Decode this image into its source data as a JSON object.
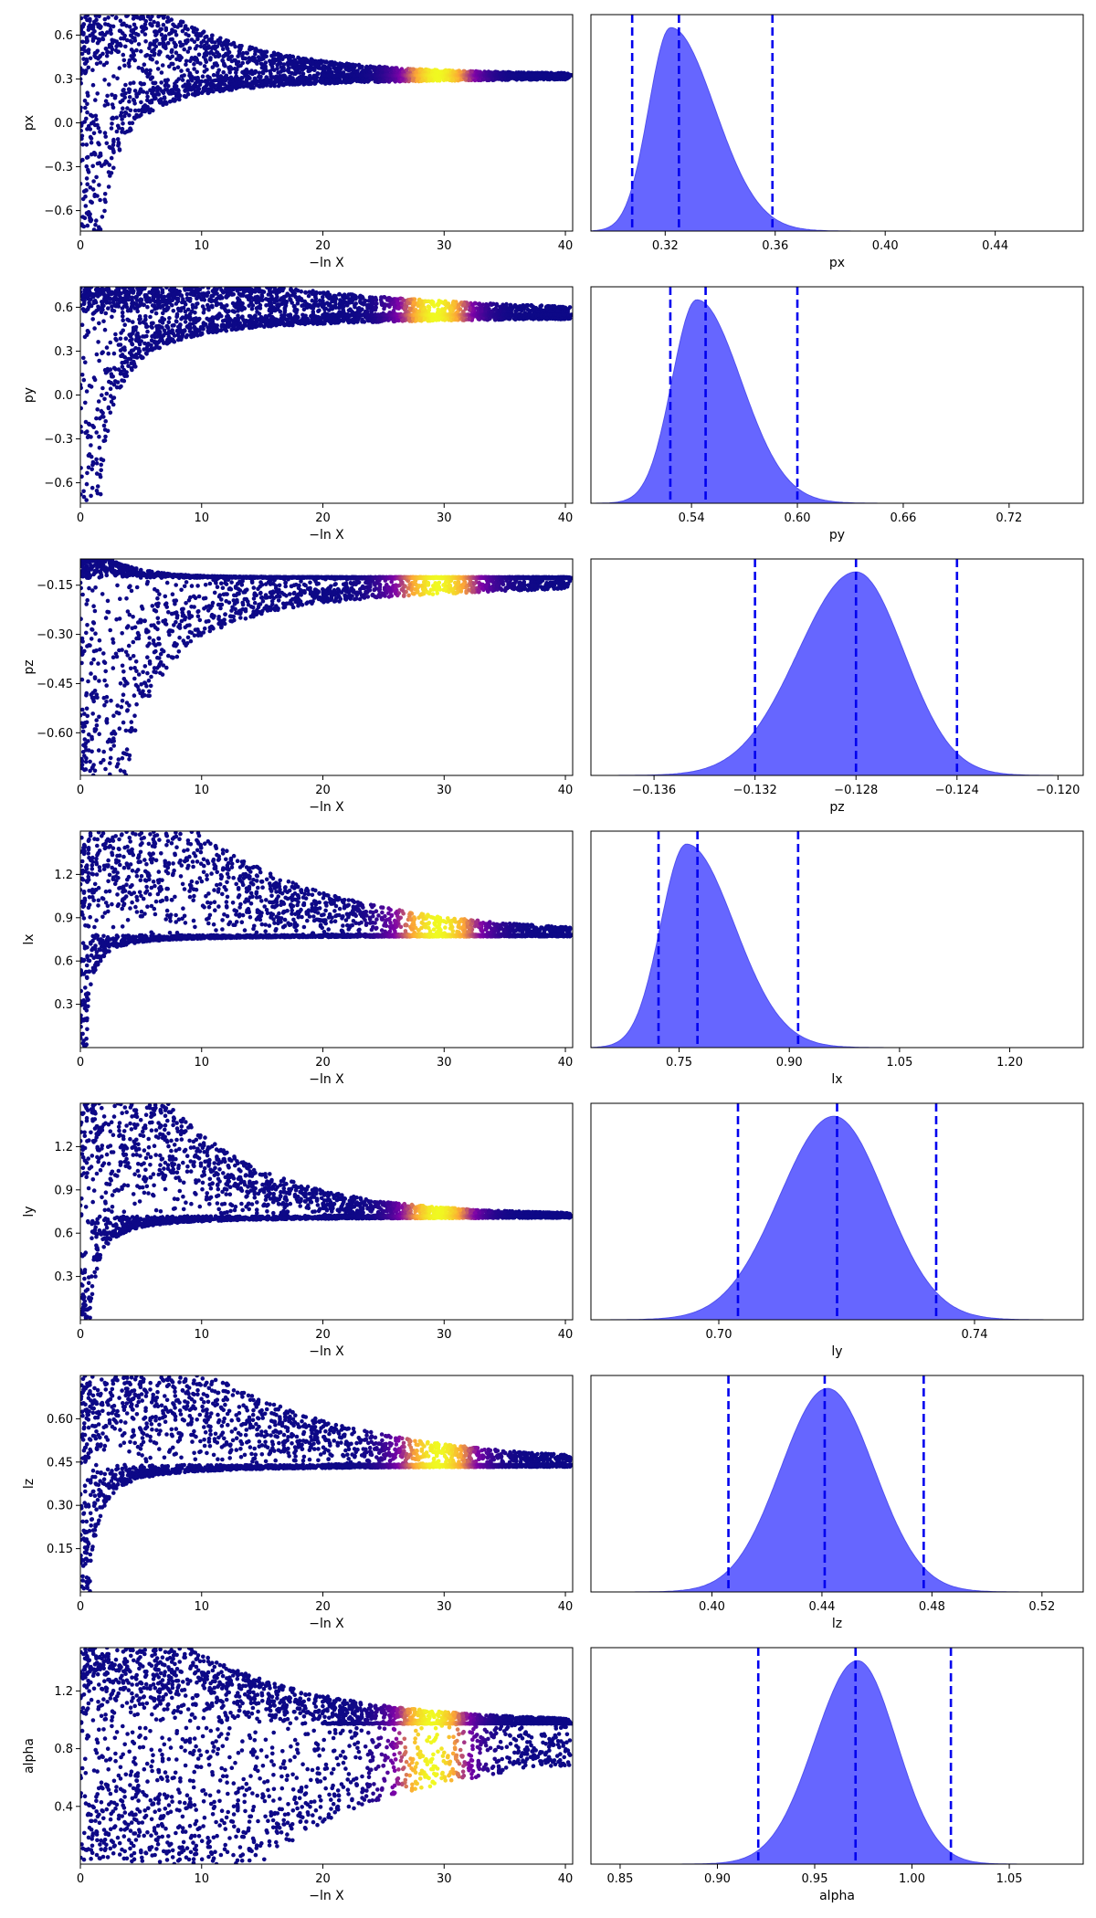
{
  "colors": {
    "trace_dense": "#0d0887",
    "trace_mid": "#7e03a8",
    "trace_peak": "#f0f921",
    "trace_orange": "#fca636",
    "posterior_fill": "#6666ff",
    "quantile_line": "#0000ee",
    "axes": "#000000"
  },
  "chart_data": [
    {
      "type": "scatter",
      "parameter": "px",
      "xlabel": "−ln X",
      "ylabel": "px",
      "xlim": [
        0,
        40.6
      ],
      "ylim": [
        -0.74,
        0.74
      ],
      "xticks": [
        0,
        10,
        20,
        30,
        40
      ],
      "xtick_labels": [
        "0",
        "10",
        "20",
        "30",
        "40"
      ],
      "yticks": [
        -0.6,
        -0.3,
        0.0,
        0.3,
        0.6
      ],
      "ytick_labels": [
        "−0.6",
        "−0.3",
        "0.0",
        "0.3",
        "0.6"
      ],
      "converged_value": 0.325,
      "envelope_top": 0.74,
      "envelope_bottom": -0.74,
      "bottom_reaches_floor_until": 1.8,
      "upper_clip_until": 12,
      "lower_asymptote_x": 1.6,
      "peak_x": 29.5,
      "peak_width": 3.0
    },
    {
      "type": "area",
      "parameter": "px",
      "xlabel": "px",
      "xlim": [
        0.293,
        0.472
      ],
      "xticks": [
        0.32,
        0.36,
        0.4,
        0.44
      ],
      "xtick_labels": [
        "0.32",
        "0.36",
        "0.40",
        "0.44"
      ],
      "mode": 0.322,
      "sigma_left": 0.008,
      "sigma_right": 0.016,
      "quantiles": [
        0.308,
        0.325,
        0.359
      ]
    },
    {
      "type": "scatter",
      "parameter": "py",
      "xlabel": "−ln X",
      "ylabel": "py",
      "xlim": [
        0,
        40.6
      ],
      "ylim": [
        -0.74,
        0.74
      ],
      "xticks": [
        0,
        10,
        20,
        30,
        40
      ],
      "xtick_labels": [
        "0",
        "10",
        "20",
        "30",
        "40"
      ],
      "yticks": [
        -0.6,
        -0.3,
        0.0,
        0.3,
        0.6
      ],
      "ytick_labels": [
        "−0.6",
        "−0.3",
        "0.0",
        "0.3",
        "0.6"
      ],
      "converged_value": 0.548,
      "envelope_top": 0.74,
      "envelope_bottom": -0.74,
      "bottom_reaches_floor_until": 1.6,
      "upper_clip_until": 26,
      "lower_asymptote_x": 1.5,
      "peak_x": 29.3,
      "peak_width": 3.0
    },
    {
      "type": "area",
      "parameter": "py",
      "xlabel": "py",
      "xlim": [
        0.483,
        0.762
      ],
      "xticks": [
        0.54,
        0.6,
        0.66,
        0.72
      ],
      "xtick_labels": [
        "0.54",
        "0.60",
        "0.66",
        "0.72"
      ],
      "mode": 0.543,
      "sigma_left": 0.014,
      "sigma_right": 0.025,
      "quantiles": [
        0.528,
        0.548,
        0.6
      ]
    },
    {
      "type": "scatter",
      "parameter": "pz",
      "xlabel": "−ln X",
      "ylabel": "pz",
      "xlim": [
        0,
        40.6
      ],
      "ylim": [
        -0.73,
        -0.07
      ],
      "xticks": [
        0,
        10,
        20,
        30,
        40
      ],
      "xtick_labels": [
        "0",
        "10",
        "20",
        "30",
        "40"
      ],
      "yticks": [
        -0.6,
        -0.45,
        -0.3,
        -0.15
      ],
      "ytick_labels": [
        "−0.60",
        "−0.45",
        "−0.30",
        "−0.15"
      ],
      "converged_value": -0.128,
      "envelope_top": -0.07,
      "envelope_bottom": -0.73,
      "bottom_reaches_floor_until": 3.8,
      "upper_clip_until": 4,
      "lower_asymptote_x": 3.2,
      "peak_x": 29.5,
      "peak_width": 3.5
    },
    {
      "type": "area",
      "parameter": "pz",
      "xlabel": "pz",
      "xlim": [
        -0.1385,
        -0.119
      ],
      "xticks": [
        -0.136,
        -0.132,
        -0.128,
        -0.124,
        -0.12
      ],
      "xtick_labels": [
        "−0.136",
        "−0.132",
        "−0.128",
        "−0.124",
        "−0.120"
      ],
      "mode": -0.128,
      "sigma_left": 0.0023,
      "sigma_right": 0.0019,
      "quantiles": [
        -0.132,
        -0.128,
        -0.124
      ]
    },
    {
      "type": "scatter",
      "parameter": "lx",
      "xlabel": "−ln X",
      "ylabel": "lx",
      "xlim": [
        0,
        40.6
      ],
      "ylim": [
        0.0,
        1.5
      ],
      "xticks": [
        0,
        10,
        20,
        30,
        40
      ],
      "xtick_labels": [
        "0",
        "10",
        "20",
        "30",
        "40"
      ],
      "yticks": [
        0.3,
        0.6,
        0.9,
        1.2
      ],
      "ytick_labels": [
        "0.3",
        "0.6",
        "0.9",
        "1.2"
      ],
      "converged_value": 0.78,
      "envelope_top": 1.5,
      "envelope_bottom": 0.0,
      "bottom_reaches_floor_until": 0.5,
      "upper_clip_until": 16,
      "lower_asymptote_x": 12,
      "peak_x": 29.5,
      "peak_width": 3.5
    },
    {
      "type": "area",
      "parameter": "lx",
      "xlabel": "lx",
      "xlim": [
        0.63,
        1.3
      ],
      "xticks": [
        0.75,
        0.9,
        1.05,
        1.2
      ],
      "xtick_labels": [
        "0.75",
        "0.90",
        "1.05",
        "1.20"
      ],
      "mode": 0.76,
      "sigma_left": 0.035,
      "sigma_right": 0.065,
      "quantiles": [
        0.722,
        0.775,
        0.912
      ]
    },
    {
      "type": "scatter",
      "parameter": "ly",
      "xlabel": "−ln X",
      "ylabel": "ly",
      "xlim": [
        0,
        40.6
      ],
      "ylim": [
        0.0,
        1.5
      ],
      "xticks": [
        0,
        10,
        20,
        30,
        40
      ],
      "xtick_labels": [
        "0",
        "10",
        "20",
        "30",
        "40"
      ],
      "yticks": [
        0.3,
        0.6,
        0.9,
        1.2
      ],
      "ytick_labels": [
        "0.3",
        "0.6",
        "0.9",
        "1.2"
      ],
      "converged_value": 0.718,
      "envelope_top": 1.5,
      "envelope_bottom": 0.0,
      "bottom_reaches_floor_until": 0.8,
      "upper_clip_until": 12,
      "lower_asymptote_x": 8,
      "peak_x": 29.5,
      "peak_width": 3.0
    },
    {
      "type": "area",
      "parameter": "ly",
      "xlabel": "ly",
      "xlim": [
        0.68,
        0.757
      ],
      "xticks": [
        0.7,
        0.74
      ],
      "xtick_labels": [
        "0.70",
        "0.74"
      ],
      "mode": 0.718,
      "sigma_left": 0.0085,
      "sigma_right": 0.008,
      "quantiles": [
        0.703,
        0.7185,
        0.734
      ]
    },
    {
      "type": "scatter",
      "parameter": "lz",
      "xlabel": "−ln X",
      "ylabel": "lz",
      "xlim": [
        0,
        40.6
      ],
      "ylim": [
        0.0,
        0.75
      ],
      "xticks": [
        0,
        10,
        20,
        30,
        40
      ],
      "xtick_labels": [
        "0",
        "10",
        "20",
        "30",
        "40"
      ],
      "yticks": [
        0.15,
        0.3,
        0.45,
        0.6
      ],
      "ytick_labels": [
        "0.15",
        "0.30",
        "0.45",
        "0.60"
      ],
      "converged_value": 0.44,
      "envelope_top": 0.75,
      "envelope_bottom": 0.0,
      "bottom_reaches_floor_until": 0.8,
      "upper_clip_until": 18,
      "lower_asymptote_x": 10,
      "peak_x": 29.5,
      "peak_width": 3.2
    },
    {
      "type": "area",
      "parameter": "lz",
      "xlabel": "lz",
      "xlim": [
        0.356,
        0.535
      ],
      "xticks": [
        0.4,
        0.44,
        0.48,
        0.52
      ],
      "xtick_labels": [
        "0.40",
        "0.44",
        "0.48",
        "0.52"
      ],
      "mode": 0.442,
      "sigma_left": 0.017,
      "sigma_right": 0.017,
      "quantiles": [
        0.406,
        0.441,
        0.477
      ]
    },
    {
      "type": "scatter",
      "parameter": "alpha",
      "xlabel": "−ln X",
      "ylabel": "alpha",
      "xlim": [
        0,
        40.6
      ],
      "ylim": [
        0.0,
        1.5
      ],
      "xticks": [
        0,
        10,
        20,
        30,
        40
      ],
      "xtick_labels": [
        "0",
        "10",
        "20",
        "30",
        "40"
      ],
      "yticks": [
        0.4,
        0.8,
        1.2
      ],
      "ytick_labels": [
        "0.4",
        "0.8",
        "1.2"
      ],
      "converged_value": 0.975,
      "envelope_top": 1.5,
      "envelope_bottom": 0.0,
      "bottom_reaches_floor_until": 15,
      "upper_clip_until": 15,
      "lower_asymptote_x": 12,
      "peak_x": 29.0,
      "peak_width": 3.0
    },
    {
      "type": "area",
      "parameter": "alpha",
      "xlabel": "alpha",
      "xlim": [
        0.835,
        1.088
      ],
      "xticks": [
        0.85,
        0.9,
        0.95,
        1.0,
        1.05
      ],
      "xtick_labels": [
        "0.85",
        "0.90",
        "0.95",
        "1.00",
        "1.05"
      ],
      "mode": 0.972,
      "sigma_left": 0.022,
      "sigma_right": 0.02,
      "quantiles": [
        0.921,
        0.971,
        1.02
      ]
    }
  ]
}
